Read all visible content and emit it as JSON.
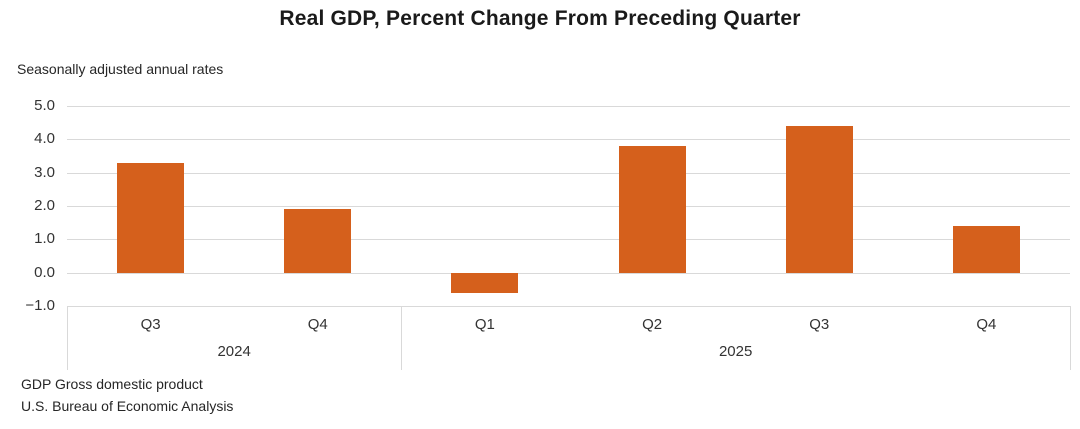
{
  "chart_data": {
    "type": "bar",
    "title": "Real GDP, Percent Change From Preceding Quarter",
    "subtitle": "Seasonally adjusted annual rates",
    "categories": [
      "Q3",
      "Q4",
      "Q1",
      "Q2",
      "Q3",
      "Q4"
    ],
    "year_groups": [
      {
        "label": "2024",
        "span": 2
      },
      {
        "label": "2025",
        "span": 4
      }
    ],
    "values": [
      3.3,
      1.9,
      -0.6,
      3.8,
      4.4,
      1.4
    ],
    "ylim": [
      -1.0,
      5.0
    ],
    "ytick_values": [
      5,
      4,
      3,
      2,
      1,
      0,
      -1
    ],
    "ytick_labels": [
      "5.0",
      "4.0",
      "3.0",
      "2.0",
      "1.0",
      "0.0",
      "−1.0"
    ],
    "grid": true,
    "legend": false,
    "xlabel": "",
    "ylabel": "",
    "bar_color": "#d5601c",
    "gridline_color": "#d9d9d9",
    "notes": [
      "GDP Gross domestic product",
      "U.S. Bureau of Economic Analysis"
    ]
  }
}
